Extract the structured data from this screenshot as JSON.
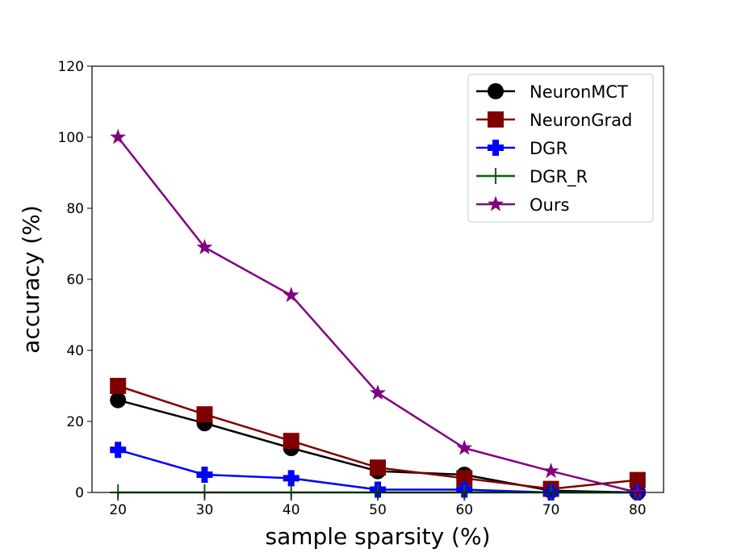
{
  "chart_data": {
    "type": "line",
    "title": "",
    "xlabel": "sample sparsity (%)",
    "ylabel": "accuracy (%)",
    "x": [
      20,
      30,
      40,
      50,
      60,
      70,
      80
    ],
    "xlim": [
      17,
      83
    ],
    "ylim": [
      0,
      120
    ],
    "xticks": [
      20,
      30,
      40,
      50,
      60,
      70,
      80
    ],
    "yticks": [
      0,
      20,
      40,
      60,
      80,
      100,
      120
    ],
    "grid": false,
    "legend_position": "top-right",
    "series": [
      {
        "name": "NeuronMCT",
        "color": "#000000",
        "marker": "circle",
        "values": [
          26,
          19.5,
          12.5,
          6,
          5,
          0.5,
          0
        ]
      },
      {
        "name": "NeuronGrad",
        "color": "#800000",
        "marker": "square",
        "values": [
          30,
          22,
          14.5,
          7,
          4,
          1,
          3.5
        ]
      },
      {
        "name": "DGR",
        "color": "#0000ff",
        "marker": "plus-filled",
        "values": [
          12,
          5,
          4,
          0.8,
          0.8,
          0,
          0
        ]
      },
      {
        "name": "DGR_R",
        "color": "#006400",
        "marker": "plus-thin",
        "values": [
          0,
          0,
          0,
          0,
          0,
          0,
          0
        ]
      },
      {
        "name": "Ours",
        "color": "#800080",
        "marker": "star",
        "values": [
          100,
          69,
          55.5,
          28,
          12.5,
          6,
          0
        ]
      }
    ]
  }
}
